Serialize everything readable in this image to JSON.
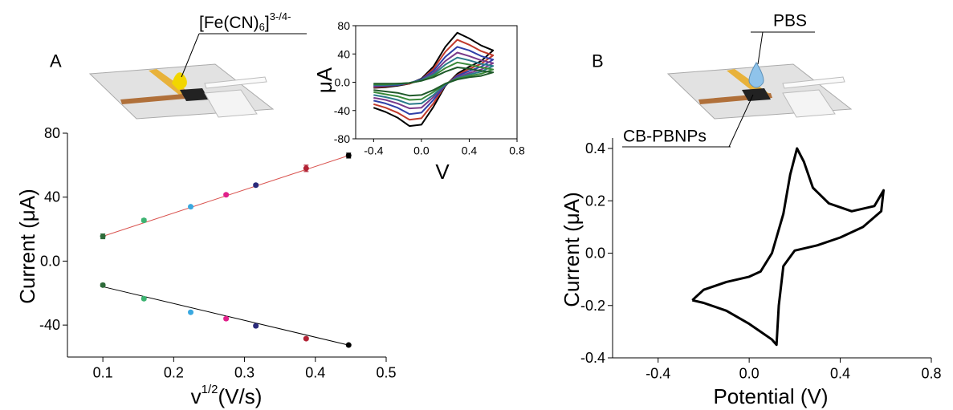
{
  "chart_data": [
    {
      "type": "scatter",
      "panel_label": "A",
      "annotation": [
        "[Fe(CN)",
        "6",
        "]",
        "3-/4-"
      ],
      "xlabel": [
        "v",
        "1/2",
        "(V/s)"
      ],
      "ylabel": "Current (μA)",
      "xlim": [
        0.05,
        0.5
      ],
      "xticks": [
        0.1,
        0.2,
        0.3,
        0.4,
        0.5
      ],
      "ylim": [
        -60,
        80
      ],
      "yticks": [
        80,
        40,
        {
          "value": 0,
          "label": "0.0"
        },
        -40
      ],
      "x": [
        0.1,
        0.158,
        0.224,
        0.274,
        0.316,
        0.387,
        0.447
      ],
      "point_colors": [
        "#2e6b3a",
        "#3cb371",
        "#3aa8e0",
        "#e0208a",
        "#2a2a7a",
        "#b22234",
        "#000000"
      ],
      "series": [
        {
          "values": [
            15.5,
            25.5,
            34,
            41.5,
            47.5,
            58,
            66
          ],
          "errors": [
            1.5,
            1,
            0.8,
            0.8,
            0.8,
            2,
            1.5
          ]
        },
        {
          "values": [
            -15,
            -23.5,
            -32,
            -36,
            -40.5,
            -48.5,
            -52.5
          ],
          "errors": [
            1,
            0.8,
            0.8,
            0.8,
            0.8,
            0.8,
            0.5
          ]
        }
      ],
      "fits": [
        {
          "color": "#d9534f",
          "x": [
            0.1,
            0.447
          ],
          "values": [
            15.5,
            66
          ]
        },
        {
          "color": "#000000",
          "x": [
            0.1,
            0.447
          ],
          "values": [
            -16,
            -52.5
          ]
        }
      ]
    },
    {
      "type": "line",
      "xlabel": "V",
      "ylabel": "μA",
      "xlim": [
        -0.55,
        0.8
      ],
      "xticks": [
        -0.4,
        {
          "value": 0,
          "label": "0.0"
        },
        0.4,
        0.8
      ],
      "ylim": [
        -80,
        80
      ],
      "yticks": [
        80,
        40,
        {
          "value": 0,
          "label": "0.0"
        },
        -40,
        -80
      ],
      "x": [
        -0.4,
        -0.3,
        -0.2,
        -0.1,
        0,
        0.1,
        0.2,
        0.3,
        0.4,
        0.5,
        0.6,
        0.5,
        0.4,
        0.3,
        0.2,
        0.1,
        0,
        -0.1,
        -0.2,
        -0.3,
        -0.4
      ],
      "series": [
        {
          "color": "#000000",
          "values": [
            -8,
            -7,
            -5,
            -2,
            5,
            22,
            50,
            70,
            62,
            52,
            45,
            30,
            22,
            12,
            -5,
            -35,
            -60,
            -62,
            -50,
            -42,
            -36
          ]
        },
        {
          "color": "#c0392b",
          "values": [
            -7,
            -6,
            -4,
            -2,
            4,
            19,
            43,
            60,
            53,
            44,
            38,
            26,
            19,
            10,
            -4,
            -30,
            -51,
            -53,
            -43,
            -36,
            -31
          ]
        },
        {
          "color": "#2f3fa8",
          "values": [
            -6,
            -5,
            -4,
            -1,
            4,
            16,
            36,
            50,
            45,
            37,
            32,
            22,
            16,
            9,
            -4,
            -25,
            -43,
            -45,
            -36,
            -30,
            -26
          ]
        },
        {
          "color": "#7a3a8a",
          "values": [
            -5,
            -4,
            -3,
            -1,
            3,
            13,
            30,
            42,
            37,
            31,
            27,
            18,
            13,
            7,
            -3,
            -21,
            -36,
            -37,
            -30,
            -25,
            -22
          ]
        },
        {
          "color": "#2a7a8a",
          "values": [
            -4,
            -4,
            -3,
            -1,
            3,
            11,
            25,
            35,
            31,
            26,
            23,
            15,
            11,
            6,
            -3,
            -18,
            -30,
            -31,
            -25,
            -21,
            -18
          ]
        },
        {
          "color": "#3a8a3a",
          "values": [
            -3,
            -3,
            -2,
            -1,
            2,
            9,
            20,
            28,
            25,
            21,
            18,
            12,
            9,
            5,
            -2,
            -14,
            -24,
            -25,
            -20,
            -17,
            -14
          ]
        },
        {
          "color": "#1f5a2a",
          "values": [
            -2,
            -2,
            -2,
            -1,
            2,
            7,
            15,
            21,
            19,
            16,
            14,
            9,
            7,
            4,
            -2,
            -11,
            -18,
            -19,
            -15,
            -13,
            -11
          ]
        }
      ]
    },
    {
      "type": "line",
      "panel_label": "B",
      "annotations": [
        "PBS",
        "CB-PBNPs"
      ],
      "xlabel": "Potential (V)",
      "ylabel": "Current (μA)",
      "xlim": [
        -0.6,
        0.8
      ],
      "xticks": [
        -0.4,
        {
          "value": 0,
          "label": "0.0"
        },
        0.4,
        0.8
      ],
      "ylim": [
        -0.4,
        0.44
      ],
      "yticks": [
        0.4,
        0.2,
        {
          "value": 0,
          "label": "0.0"
        },
        -0.2,
        -0.4
      ],
      "x": [
        -0.25,
        -0.2,
        -0.1,
        0.0,
        0.05,
        0.1,
        0.15,
        0.18,
        0.21,
        0.24,
        0.28,
        0.35,
        0.45,
        0.55,
        0.59,
        0.58,
        0.5,
        0.4,
        0.3,
        0.2,
        0.15,
        0.13,
        0.12,
        0.1,
        0.05,
        0.0,
        -0.1,
        -0.2,
        -0.25
      ],
      "series": [
        {
          "color": "#000000",
          "values": [
            -0.18,
            -0.14,
            -0.11,
            -0.09,
            -0.07,
            0.0,
            0.15,
            0.3,
            0.4,
            0.35,
            0.25,
            0.19,
            0.16,
            0.18,
            0.24,
            0.16,
            0.1,
            0.06,
            0.03,
            0.01,
            -0.05,
            -0.2,
            -0.35,
            -0.33,
            -0.3,
            -0.27,
            -0.22,
            -0.19,
            -0.18
          ]
        }
      ]
    }
  ]
}
